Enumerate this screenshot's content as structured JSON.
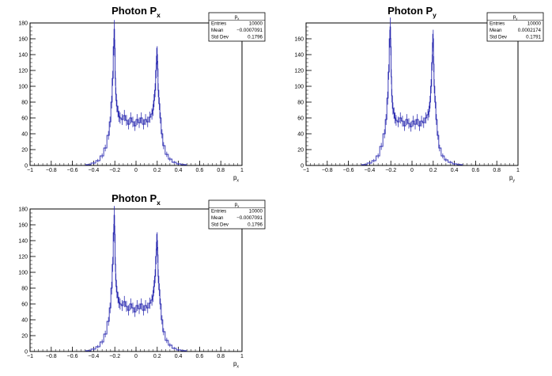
{
  "chart_data": [
    {
      "type": "histogram",
      "title_main": "Photon P",
      "title_sub": "x",
      "xlabel_main": "p",
      "xlabel_sub": "x",
      "xlim": [
        -1,
        1
      ],
      "ylim": [
        0,
        180
      ],
      "xticks": [
        "−1",
        "−0.8",
        "−0.6",
        "−0.4",
        "−0.2",
        "0",
        "0.2",
        "0.4",
        "0.6",
        "0.8",
        "1"
      ],
      "yticks": [
        "0",
        "20",
        "40",
        "60",
        "80",
        "100",
        "120",
        "140",
        "160",
        "180"
      ],
      "stats": {
        "title_main": "p",
        "title_sub": "x",
        "rows": [
          {
            "label": "Entries",
            "value": "10000"
          },
          {
            "label": "Mean",
            "value": "−0.0007091"
          },
          {
            "label": "Std Dev",
            "value": "0.1796"
          }
        ]
      },
      "series": [
        {
          "x": [
            -0.45,
            -0.4,
            -0.36,
            -0.32,
            -0.29,
            -0.26,
            -0.245,
            -0.23,
            -0.22,
            -0.21,
            -0.205,
            -0.2,
            -0.195,
            -0.19,
            -0.18,
            -0.17,
            -0.16,
            -0.15,
            -0.13,
            -0.11,
            -0.09,
            -0.07,
            -0.05,
            -0.03,
            -0.01,
            0.01,
            0.03,
            0.05,
            0.07,
            0.09,
            0.11,
            0.13,
            0.15,
            0.16,
            0.17,
            0.18,
            0.19,
            0.195,
            0.2,
            0.205,
            0.21,
            0.22,
            0.23,
            0.245,
            0.26,
            0.29,
            0.32,
            0.36,
            0.4,
            0.45
          ],
          "y": [
            1,
            3,
            6,
            12,
            22,
            38,
            55,
            80,
            110,
            150,
            172,
            148,
            110,
            90,
            75,
            68,
            62,
            60,
            58,
            63,
            57,
            52,
            60,
            55,
            50,
            58,
            54,
            60,
            52,
            58,
            55,
            61,
            65,
            70,
            82,
            95,
            120,
            138,
            140,
            122,
            95,
            78,
            60,
            40,
            25,
            14,
            8,
            4,
            2,
            1
          ]
        }
      ]
    },
    {
      "type": "histogram",
      "title_main": "Photon P",
      "title_sub": "y",
      "xlabel_main": "p",
      "xlabel_sub": "y",
      "xlim": [
        -1,
        1
      ],
      "ylim": [
        0,
        180
      ],
      "xticks": [
        "−1",
        "−0.8",
        "−0.6",
        "−0.4",
        "−0.2",
        "0",
        "0.2",
        "0.4",
        "0.6",
        "0.8",
        "1"
      ],
      "yticks": [
        "0",
        "20",
        "40",
        "60",
        "80",
        "100",
        "120",
        "140",
        "160"
      ],
      "stats": {
        "title_main": "p",
        "title_sub": "y",
        "rows": [
          {
            "label": "Entries",
            "value": "10000"
          },
          {
            "label": "Mean",
            "value": "0.0002174"
          },
          {
            "label": "Std Dev",
            "value": "0.1791"
          }
        ]
      },
      "series": [
        {
          "x": [
            -0.45,
            -0.4,
            -0.36,
            -0.32,
            -0.29,
            -0.26,
            -0.245,
            -0.23,
            -0.22,
            -0.21,
            -0.205,
            -0.2,
            -0.195,
            -0.19,
            -0.18,
            -0.17,
            -0.16,
            -0.15,
            -0.13,
            -0.11,
            -0.09,
            -0.07,
            -0.05,
            -0.03,
            -0.01,
            0.01,
            0.03,
            0.05,
            0.07,
            0.09,
            0.11,
            0.13,
            0.15,
            0.16,
            0.17,
            0.18,
            0.19,
            0.195,
            0.2,
            0.205,
            0.21,
            0.22,
            0.23,
            0.245,
            0.26,
            0.29,
            0.32,
            0.36,
            0.4,
            0.45
          ],
          "y": [
            1,
            3,
            6,
            12,
            24,
            40,
            58,
            85,
            118,
            160,
            175,
            150,
            112,
            88,
            72,
            66,
            60,
            57,
            55,
            60,
            56,
            50,
            58,
            53,
            49,
            56,
            52,
            58,
            50,
            56,
            54,
            60,
            64,
            68,
            80,
            100,
            130,
            155,
            160,
            128,
            100,
            80,
            58,
            38,
            22,
            12,
            7,
            4,
            2,
            1
          ]
        }
      ]
    },
    {
      "type": "histogram",
      "title_main": "Photon P",
      "title_sub": "x",
      "xlabel_main": "p",
      "xlabel_sub": "x",
      "xlim": [
        -1,
        1
      ],
      "ylim": [
        0,
        180
      ],
      "xticks": [
        "−1",
        "−0.8",
        "−0.6",
        "−0.4",
        "−0.2",
        "0",
        "0.2",
        "0.4",
        "0.6",
        "0.8",
        "1"
      ],
      "yticks": [
        "0",
        "20",
        "40",
        "60",
        "80",
        "100",
        "120",
        "140",
        "160",
        "180"
      ],
      "stats": {
        "title_main": "p",
        "title_sub": "x",
        "rows": [
          {
            "label": "Entries",
            "value": "10000"
          },
          {
            "label": "Mean",
            "value": "−0.0007091"
          },
          {
            "label": "Std Dev",
            "value": "0.1796"
          }
        ]
      },
      "series": [
        {
          "x": [
            -0.45,
            -0.4,
            -0.36,
            -0.32,
            -0.29,
            -0.26,
            -0.245,
            -0.23,
            -0.22,
            -0.21,
            -0.205,
            -0.2,
            -0.195,
            -0.19,
            -0.18,
            -0.17,
            -0.16,
            -0.15,
            -0.13,
            -0.11,
            -0.09,
            -0.07,
            -0.05,
            -0.03,
            -0.01,
            0.01,
            0.03,
            0.05,
            0.07,
            0.09,
            0.11,
            0.13,
            0.15,
            0.16,
            0.17,
            0.18,
            0.19,
            0.195,
            0.2,
            0.205,
            0.21,
            0.22,
            0.23,
            0.245,
            0.26,
            0.29,
            0.32,
            0.36,
            0.4,
            0.45
          ],
          "y": [
            1,
            3,
            6,
            12,
            22,
            38,
            55,
            80,
            110,
            150,
            172,
            148,
            110,
            90,
            75,
            68,
            62,
            60,
            58,
            63,
            57,
            52,
            60,
            55,
            50,
            58,
            54,
            60,
            52,
            58,
            55,
            61,
            65,
            70,
            82,
            95,
            120,
            138,
            140,
            122,
            95,
            78,
            60,
            40,
            25,
            14,
            8,
            4,
            2,
            1
          ]
        }
      ]
    }
  ]
}
